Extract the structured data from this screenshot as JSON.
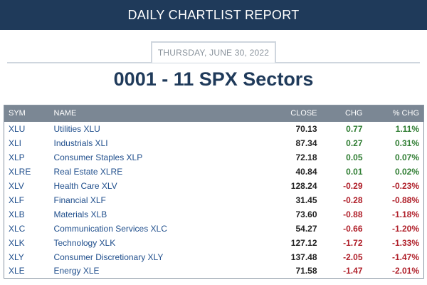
{
  "header": {
    "title": "DAILY CHARTLIST REPORT"
  },
  "report": {
    "date": "THURSDAY, JUNE 30, 2022",
    "title": "0001 - 11 SPX Sectors"
  },
  "table": {
    "columns": {
      "sym": "SYM",
      "name": "NAME",
      "close": "CLOSE",
      "chg": "CHG",
      "pct": "% CHG"
    },
    "rows": [
      {
        "sym": "XLU",
        "name": "Utilities XLU",
        "close": "70.13",
        "chg": "0.77",
        "pct": "1.11%",
        "dir": "pos"
      },
      {
        "sym": "XLI",
        "name": "Industrials XLI",
        "close": "87.34",
        "chg": "0.27",
        "pct": "0.31%",
        "dir": "pos"
      },
      {
        "sym": "XLP",
        "name": "Consumer Staples XLP",
        "close": "72.18",
        "chg": "0.05",
        "pct": "0.07%",
        "dir": "pos"
      },
      {
        "sym": "XLRE",
        "name": "Real Estate XLRE",
        "close": "40.84",
        "chg": "0.01",
        "pct": "0.02%",
        "dir": "pos"
      },
      {
        "sym": "XLV",
        "name": "Health Care XLV",
        "close": "128.24",
        "chg": "-0.29",
        "pct": "-0.23%",
        "dir": "neg"
      },
      {
        "sym": "XLF",
        "name": "Financial XLF",
        "close": "31.45",
        "chg": "-0.28",
        "pct": "-0.88%",
        "dir": "neg"
      },
      {
        "sym": "XLB",
        "name": "Materials XLB",
        "close": "73.60",
        "chg": "-0.88",
        "pct": "-1.18%",
        "dir": "neg"
      },
      {
        "sym": "XLC",
        "name": "Communication Services XLC",
        "close": "54.27",
        "chg": "-0.66",
        "pct": "-1.20%",
        "dir": "neg"
      },
      {
        "sym": "XLK",
        "name": "Technology XLK",
        "close": "127.12",
        "chg": "-1.72",
        "pct": "-1.33%",
        "dir": "neg"
      },
      {
        "sym": "XLY",
        "name": "Consumer Discretionary XLY",
        "close": "137.48",
        "chg": "-2.05",
        "pct": "-1.47%",
        "dir": "neg"
      },
      {
        "sym": "XLE",
        "name": "Energy XLE",
        "close": "71.58",
        "chg": "-1.47",
        "pct": "-2.01%",
        "dir": "neg"
      }
    ]
  },
  "colors": {
    "banner": "#1f3a5a",
    "header_row": "#7b8794",
    "link": "#1f4e8c",
    "positive": "#2f7d32",
    "negative": "#b0202a"
  }
}
